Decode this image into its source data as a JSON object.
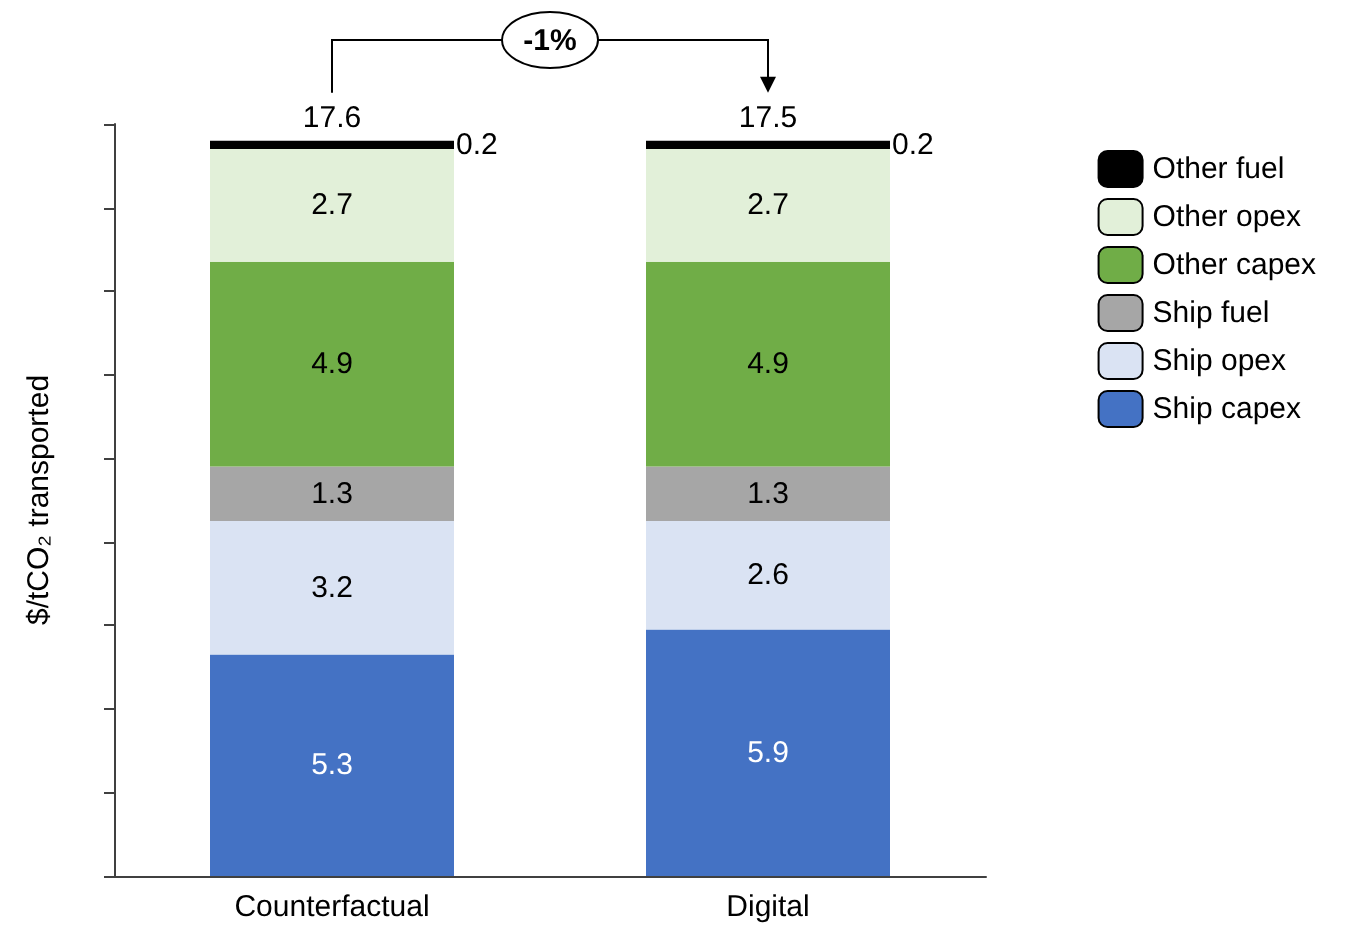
{
  "chart_data": {
    "type": "bar",
    "stacked": true,
    "ylabel": "$/tCO₂ transported",
    "categories": [
      "Counterfactual",
      "Digital"
    ],
    "series": [
      {
        "name": "Ship capex",
        "color": "#4472c4",
        "values": [
          5.3,
          5.9
        ]
      },
      {
        "name": "Ship opex",
        "color": "#dae3f3",
        "values": [
          3.2,
          2.6
        ]
      },
      {
        "name": "Ship fuel",
        "color": "#a6a6a6",
        "values": [
          1.3,
          1.3
        ]
      },
      {
        "name": "Other capex",
        "color": "#70ad47",
        "values": [
          4.9,
          4.9
        ]
      },
      {
        "name": "Other opex",
        "color": "#e2f0d9",
        "values": [
          2.7,
          2.7
        ]
      },
      {
        "name": "Other fuel",
        "color": "#000000",
        "values": [
          0.2,
          0.2
        ]
      }
    ],
    "data_labels": true,
    "totals": [
      "17.6",
      "17.5"
    ],
    "annotations": [
      "-1%"
    ],
    "ylim": [
      0,
      18
    ],
    "yticks": [
      {
        "value": 0,
        "label": null
      },
      {
        "value": 2,
        "label": null
      },
      {
        "value": 4,
        "label": null
      },
      {
        "value": 6,
        "label": null
      },
      {
        "value": 8,
        "label": null
      },
      {
        "value": 10,
        "label": null
      },
      {
        "value": 12,
        "label": null
      },
      {
        "value": 14,
        "label": null
      },
      {
        "value": 16,
        "label": null
      },
      {
        "value": 18,
        "label": null
      }
    ],
    "tick_labels": "x",
    "grid": false,
    "legend": "right"
  }
}
